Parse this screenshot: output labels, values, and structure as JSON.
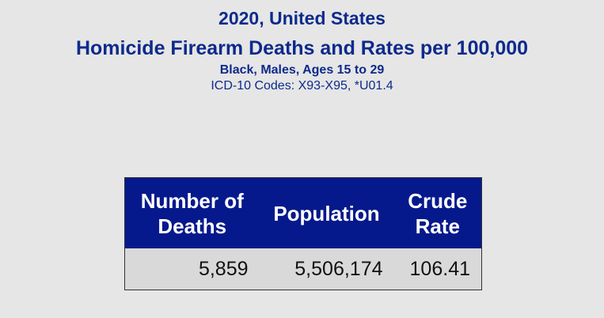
{
  "header": {
    "title": "2020, United States",
    "subtitle": "Homicide Firearm Deaths and Rates per 100,000",
    "group": "Black, Males, Ages 15 to 29",
    "codes": "ICD-10 Codes: X93-X95, *U01.4"
  },
  "table": {
    "columns": [
      "Number of Deaths",
      "Population",
      "Crude Rate"
    ],
    "rows": [
      [
        "5,859",
        "5,506,174",
        "106.41"
      ]
    ]
  }
}
